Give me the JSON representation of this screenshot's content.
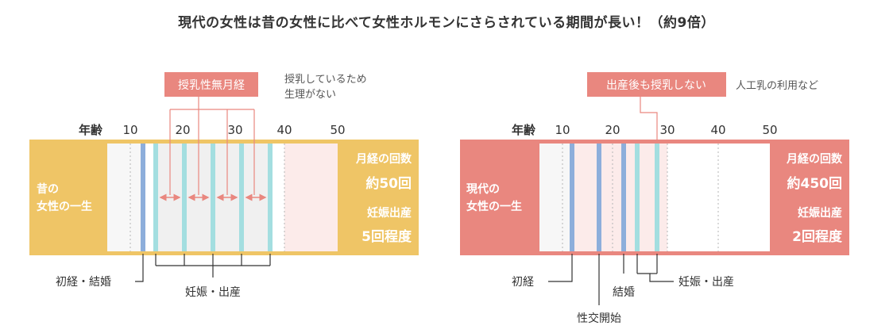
{
  "title": "現代の女性は昔の女性に比べて女性ホルモンにさらされている期間が長い！（約9倍）",
  "colors": {
    "old": "#efc566",
    "modern": "#e9877f",
    "axis_text": "#333333",
    "menarche_bar": "#8daedb",
    "pregnancy_bar": "#a3dee0",
    "callout": "#e9877f",
    "arrow": "#e9877f"
  },
  "panels": [
    {
      "id": "old",
      "age_label": "年齢",
      "ticks": [
        "10",
        "20",
        "30",
        "40",
        "50"
      ],
      "side_label": [
        "昔の",
        "女性の一生"
      ],
      "stats": {
        "menstruation_label": "月経の回数",
        "menstruation_value": "約50回",
        "pregnancy_label": "妊娠出産",
        "pregnancy_value": "5回程度"
      },
      "callout": {
        "label": "授乳性無月経",
        "note": [
          "授乳しているため",
          "生理がない"
        ]
      },
      "annotations": {
        "menarche_marriage": "初経・結婚",
        "pregnancy_birth": "妊娠・出産"
      }
    },
    {
      "id": "modern",
      "age_label": "年齢",
      "ticks": [
        "10",
        "20",
        "30",
        "40",
        "50"
      ],
      "side_label": [
        "現代の",
        "女性の一生"
      ],
      "stats": {
        "menstruation_label": "月経の回数",
        "menstruation_value": "約450回",
        "pregnancy_label": "妊娠出産",
        "pregnancy_value": "2回程度"
      },
      "callout": {
        "label": "出産後も授乳しない",
        "note": [
          "人工乳の利用など"
        ]
      },
      "annotations": {
        "menarche": "初経",
        "sex_start": "性交開始",
        "marriage": "結婚",
        "pregnancy_birth": "妊娠・出産"
      }
    }
  ]
}
